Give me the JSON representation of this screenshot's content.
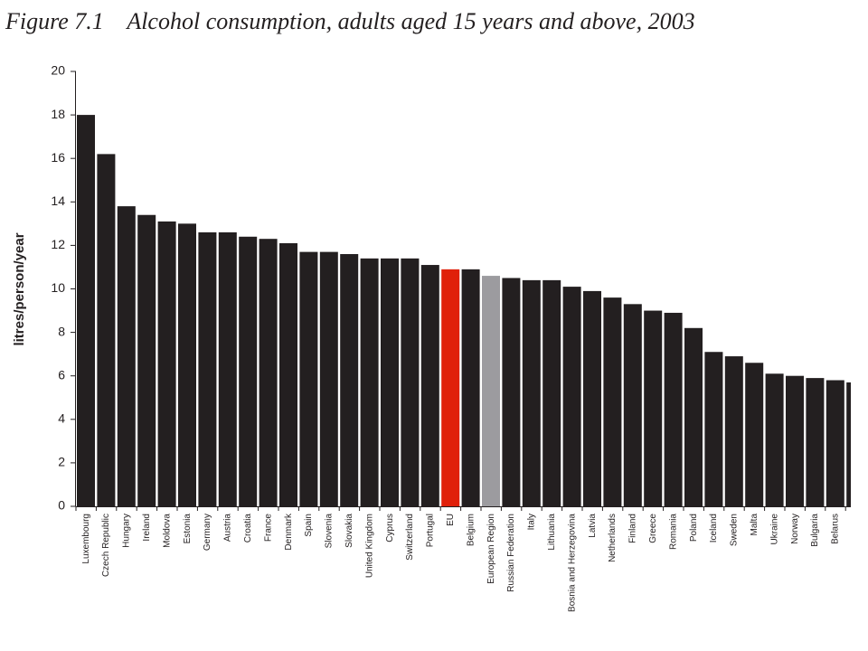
{
  "chart_data": {
    "type": "bar",
    "title": "Figure 7.1    Alcohol consumption, adults aged 15 years and above, 2003",
    "y_label": "litres/person/year",
    "categories": [
      "Luxembourg",
      "Czech Republic",
      "Hungary",
      "Ireland",
      "Moldova",
      "Estonia",
      "Germany",
      "Austria",
      "Croatia",
      "France",
      "Denmark",
      "Spain",
      "Slovenia",
      "Slovakia",
      "United Kingdom",
      "Cyprus",
      "Switzerland",
      "Portugal",
      "EU",
      "Belgium",
      "European Region",
      "Russian Federation",
      "Italy",
      "Lithuania",
      "Bosnia and Herzegovina",
      "Latvia",
      "Netherlands",
      "Finland",
      "Greece",
      "Romania",
      "Poland",
      "Iceland",
      "Sweden",
      "Malta",
      "Ukraine",
      "Norway",
      "Bulgaria",
      "Belarus",
      null
    ],
    "values": [
      18.0,
      16.2,
      13.8,
      13.4,
      13.1,
      13.0,
      12.6,
      12.6,
      12.4,
      12.3,
      12.1,
      11.7,
      11.7,
      11.6,
      11.4,
      11.4,
      11.4,
      11.1,
      10.9,
      10.9,
      10.6,
      10.5,
      10.4,
      10.4,
      10.1,
      9.9,
      9.6,
      9.3,
      9.0,
      8.9,
      8.2,
      7.1,
      6.9,
      6.6,
      6.1,
      6.0,
      5.9,
      5.8,
      5.7
    ],
    "colors": [
      "#231f20",
      "#231f20",
      "#231f20",
      "#231f20",
      "#231f20",
      "#231f20",
      "#231f20",
      "#231f20",
      "#231f20",
      "#231f20",
      "#231f20",
      "#231f20",
      "#231f20",
      "#231f20",
      "#231f20",
      "#231f20",
      "#231f20",
      "#231f20",
      "#e0200a",
      "#231f20",
      "#9c9b9f",
      "#231f20",
      "#231f20",
      "#231f20",
      "#231f20",
      "#231f20",
      "#231f20",
      "#231f20",
      "#231f20",
      "#231f20",
      "#231f20",
      "#231f20",
      "#231f20",
      "#231f20",
      "#231f20",
      "#231f20",
      "#231f20",
      "#231f20",
      "#231f20"
    ],
    "ylim": [
      0,
      20
    ],
    "yticks": [
      0,
      2,
      4,
      6,
      8,
      10,
      12,
      14,
      16,
      18,
      20
    ],
    "grid": false
  }
}
